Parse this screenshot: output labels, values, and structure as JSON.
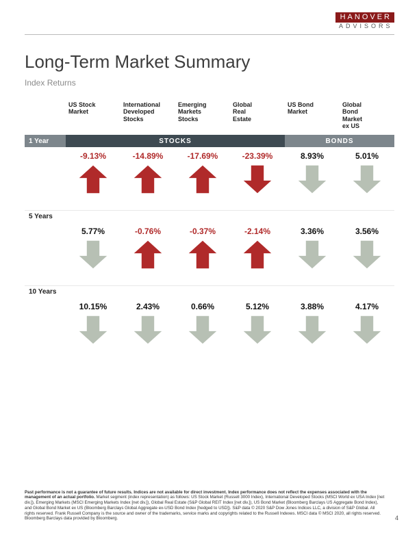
{
  "logo": {
    "top": "HANOVER",
    "bottom": "ADVISORS"
  },
  "title": "Long-Term Market Summary",
  "subtitle": "Index Returns",
  "columns": [
    {
      "label": "US Stock\nMarket",
      "group": "stocks"
    },
    {
      "label": "International\nDeveloped\nStocks",
      "group": "stocks"
    },
    {
      "label": "Emerging\nMarkets\nStocks",
      "group": "stocks"
    },
    {
      "label": "Global\nReal\nEstate",
      "group": "stocks"
    },
    {
      "label": "US Bond\nMarket",
      "group": "bonds"
    },
    {
      "label": "Global\nBond\nMarket\nex US",
      "group": "bonds"
    }
  ],
  "groupLabels": {
    "stocks": "STOCKS",
    "bonds": "BONDS"
  },
  "periods": [
    {
      "label": "1 Year",
      "isBand": true,
      "cells": [
        {
          "text": "-9.13%",
          "dir": "up",
          "color": "#b02a2a"
        },
        {
          "text": "-14.89%",
          "dir": "up",
          "color": "#b02a2a"
        },
        {
          "text": "-17.69%",
          "dir": "up",
          "color": "#b02a2a"
        },
        {
          "text": "-23.39%",
          "dir": "down",
          "color": "#b02a2a"
        },
        {
          "text": "8.93%",
          "dir": "down",
          "color": "#b7c0b4"
        },
        {
          "text": "5.01%",
          "dir": "down",
          "color": "#b7c0b4"
        }
      ]
    },
    {
      "label": "5 Years",
      "isBand": false,
      "cells": [
        {
          "text": "5.77%",
          "dir": "down",
          "color": "#b7c0b4"
        },
        {
          "text": "-0.76%",
          "dir": "up",
          "color": "#b02a2a"
        },
        {
          "text": "-0.37%",
          "dir": "up",
          "color": "#b02a2a"
        },
        {
          "text": "-2.14%",
          "dir": "up",
          "color": "#b02a2a"
        },
        {
          "text": "3.36%",
          "dir": "down",
          "color": "#b7c0b4"
        },
        {
          "text": "3.56%",
          "dir": "down",
          "color": "#b7c0b4"
        }
      ]
    },
    {
      "label": "10 Years",
      "isBand": false,
      "cells": [
        {
          "text": "10.15%",
          "dir": "down",
          "color": "#b7c0b4"
        },
        {
          "text": "2.43%",
          "dir": "down",
          "color": "#b7c0b4"
        },
        {
          "text": "0.66%",
          "dir": "down",
          "color": "#b7c0b4"
        },
        {
          "text": "5.12%",
          "dir": "down",
          "color": "#b7c0b4"
        },
        {
          "text": "3.88%",
          "dir": "down",
          "color": "#b7c0b4"
        },
        {
          "text": "4.17%",
          "dir": "down",
          "color": "#b7c0b4"
        }
      ]
    }
  ],
  "colors": {
    "negArrow": "#b02a2a",
    "posArrow": "#b7c0b4",
    "negText": "#b02a2a",
    "posText": "#111111",
    "bandDark": "#3e4a52",
    "bandLight": "#7d868c"
  },
  "footnote": "Past performance is not a guarantee of future results. Indices are not available for direct investment. Index performance does not reflect the expenses associated with the management of an actual portfolio. Market segment (index representation) as follows: US Stock Market (Russell 3000 Index), International Developed Stocks (MSCI World ex USA Index [net div.]), Emerging Markets (MSCI Emerging Markets Index [net div.]), Global Real Estate (S&P Global REIT Index [net div.]), US Bond Market (Bloomberg Barclays US Aggregate Bond Index), and Global Bond Market ex US (Bloomberg Barclays Global Aggregate ex-USD Bond Index [hedged to USD]). S&P data © 2020 S&P Dow Jones Indices LLC, a division of S&P Global. All rights reserved. Frank Russell Company is the source and owner of the trademarks, service marks and copyrights related to the Russell Indexes. MSCI data © MSCI 2020, all rights reserved. Bloomberg Barclays data provided by Bloomberg.",
  "footnoteBoldPrefix": "Past performance is not a guarantee of future results. Indices are not available for direct investment. Index performance does not reflect the expenses associated with the management of an actual portfolio.",
  "pageNumber": "4"
}
